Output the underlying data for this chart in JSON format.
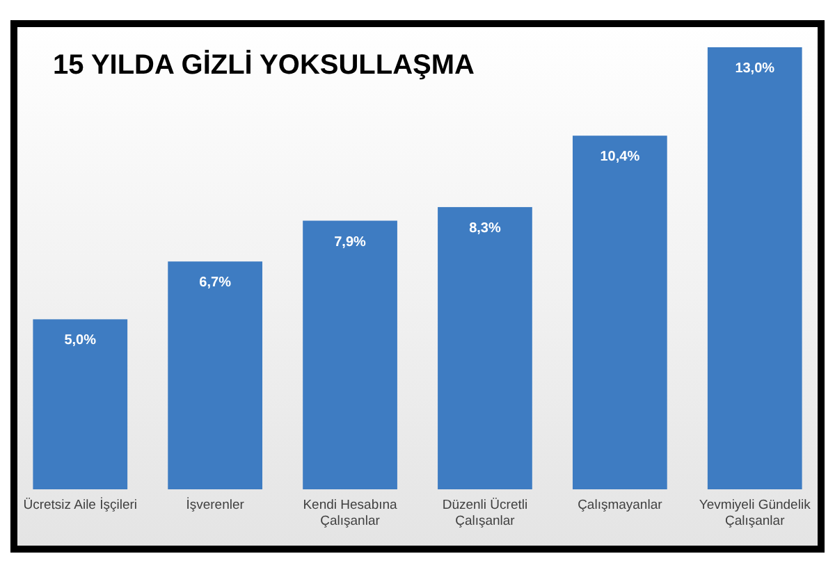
{
  "chart_data": {
    "type": "bar",
    "title": "15 YILDA GİZLİ YOKSULLAŞMA",
    "categories": [
      "Ücretsiz Aile İşçileri",
      "İşverenler",
      "Kendi Hesabına Çalışanlar",
      "Düzenli Ücretli Çalışanlar",
      "Çalışmayanlar",
      "Yevmiyeli Gündelik Çalışanlar"
    ],
    "values": [
      5.0,
      6.7,
      7.9,
      8.3,
      10.4,
      13.0
    ],
    "value_labels": [
      "5,0%",
      "6,7%",
      "7,9%",
      "8,3%",
      "10,4%",
      "13,0%"
    ],
    "color": "#3e7cc2"
  }
}
